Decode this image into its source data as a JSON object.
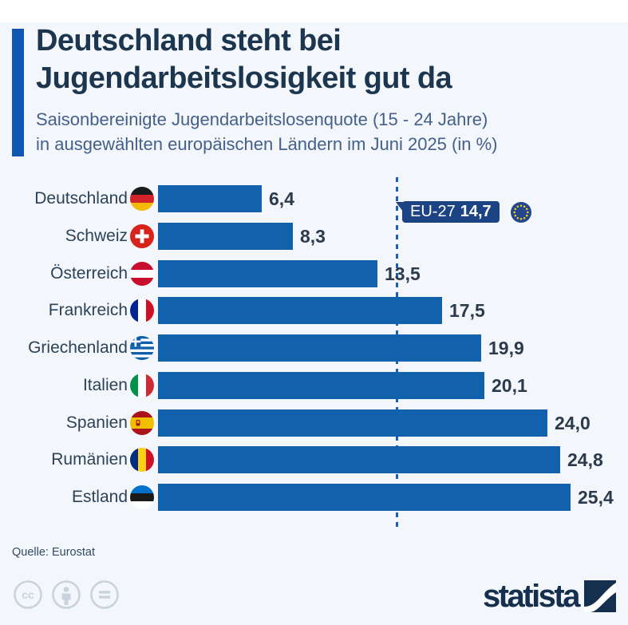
{
  "header": {
    "title_line1": "Deutschland steht bei",
    "title_line2": "Jugendarbeitslosigkeit gut da",
    "subtitle_line1": "Saisonbereinigte Jugendarbeitslosenquote (15 - 24 Jahre)",
    "subtitle_line2": "in ausgewählten europäischen Ländern im Juni 2025 (in %)"
  },
  "chart_data": {
    "type": "bar",
    "orientation": "horizontal",
    "title": "Deutschland steht bei Jugendarbeitslosigkeit gut da",
    "subtitle": "Saisonbereinigte Jugendarbeitslosenquote (15 - 24 Jahre) in ausgewählten europäischen Ländern im Juni 2025 (in %)",
    "categories": [
      "Deutschland",
      "Schweiz",
      "Österreich",
      "Frankreich",
      "Griechenland",
      "Italien",
      "Spanien",
      "Rumänien",
      "Estland"
    ],
    "values": [
      6.4,
      8.3,
      13.5,
      17.5,
      19.9,
      20.1,
      24.0,
      24.8,
      25.4
    ],
    "value_labels": [
      "6,4",
      "8,3",
      "13,5",
      "17,5",
      "19,9",
      "20,1",
      "24,0",
      "24,8",
      "25,4"
    ],
    "flag_icons": [
      "flag-germany-icon",
      "flag-switzerland-icon",
      "flag-austria-icon",
      "flag-france-icon",
      "flag-greece-icon",
      "flag-italy-icon",
      "flag-spain-icon",
      "flag-romania-icon",
      "flag-estonia-icon"
    ],
    "reference_line": {
      "label": "EU-27",
      "value": 14.7,
      "value_label": "14,7",
      "flag_icon": "flag-eu-icon",
      "style": "dashed"
    },
    "xlim": [
      0,
      28.9
    ],
    "grid": false,
    "legend": "none"
  },
  "colors": {
    "background": "#f3f6fa",
    "bar": "#1161ac",
    "accent": "#0f57b2",
    "badge": "#1c4485",
    "title": "#1d3650",
    "subtitle": "#44608c"
  },
  "footer": {
    "source": "Quelle: Eurostat",
    "license_icons": [
      "cc-icon",
      "attribution-icon",
      "no-derivatives-icon"
    ],
    "brand": "statista"
  }
}
